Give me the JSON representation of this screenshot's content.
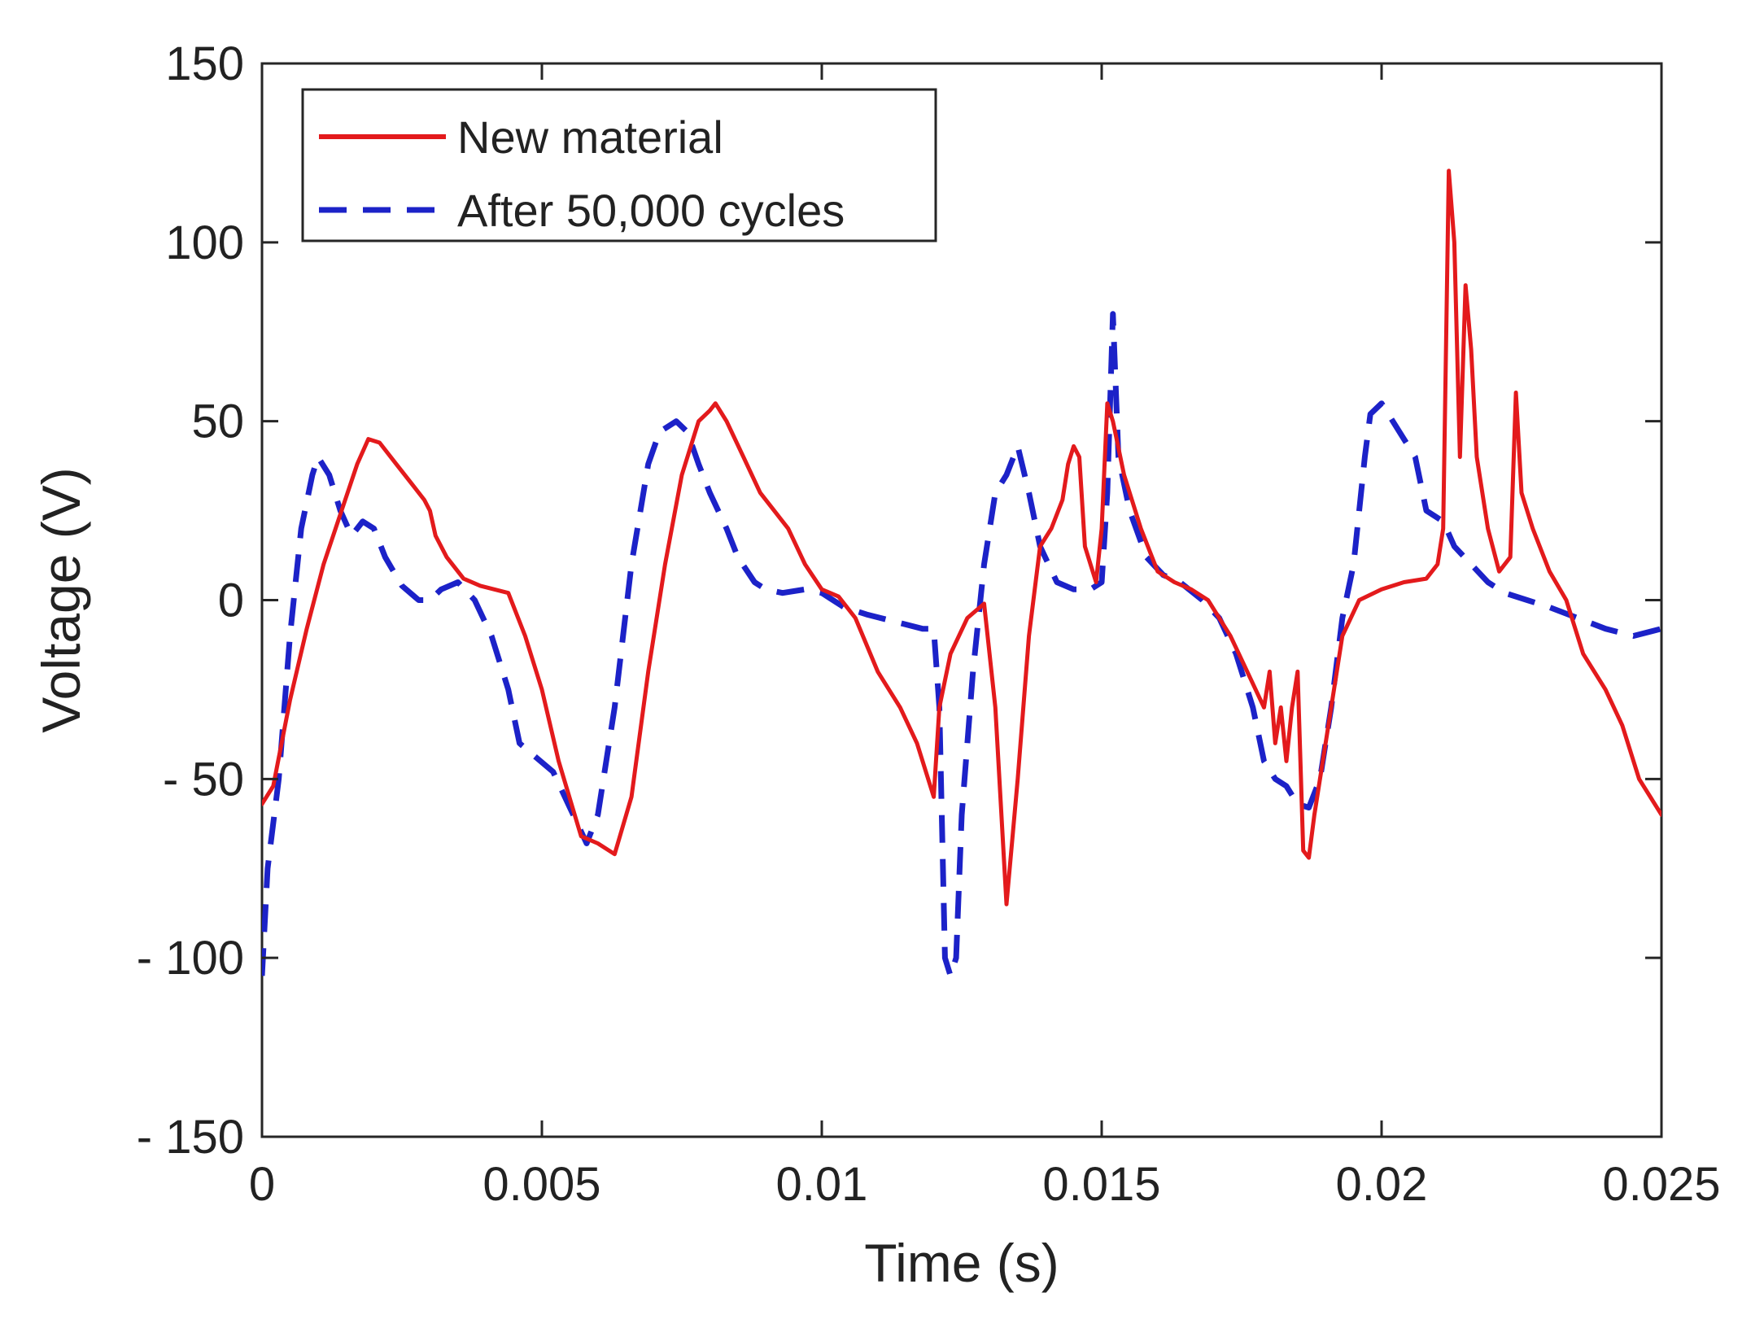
{
  "chart_data": {
    "type": "line",
    "title": "",
    "xlabel": "Time (s)",
    "ylabel": "Voltage (V)",
    "xlim": [
      0,
      0.025
    ],
    "ylim": [
      -150,
      150
    ],
    "x_ticks": [
      0,
      0.005,
      0.01,
      0.015,
      0.02,
      0.025
    ],
    "x_tick_labels": [
      "0",
      "0.005",
      "0.01",
      "0.015",
      "0.02",
      "0.025"
    ],
    "y_ticks": [
      -150,
      -100,
      -50,
      0,
      50,
      100,
      150
    ],
    "y_tick_labels": [
      "- 150",
      "- 100",
      "- 50",
      "0",
      "50",
      "100",
      "150"
    ],
    "grid": false,
    "legend_position": "top-left",
    "series": [
      {
        "name": "New material",
        "color": "#e31a1c",
        "style": "solid",
        "points": [
          [
            0,
            -57
          ],
          [
            0.0002,
            -52
          ],
          [
            0.0005,
            -28
          ],
          [
            0.0008,
            -8
          ],
          [
            0.0011,
            10
          ],
          [
            0.0014,
            24
          ],
          [
            0.0017,
            38
          ],
          [
            0.0019,
            45
          ],
          [
            0.0021,
            44
          ],
          [
            0.0024,
            38
          ],
          [
            0.0027,
            32
          ],
          [
            0.0029,
            28
          ],
          [
            0.003,
            25
          ],
          [
            0.0031,
            18
          ],
          [
            0.0033,
            12
          ],
          [
            0.0036,
            6
          ],
          [
            0.0039,
            4
          ],
          [
            0.0044,
            2
          ],
          [
            0.0047,
            -10
          ],
          [
            0.005,
            -25
          ],
          [
            0.0053,
            -45
          ],
          [
            0.0057,
            -66
          ],
          [
            0.006,
            -68
          ],
          [
            0.0063,
            -71
          ],
          [
            0.0066,
            -55
          ],
          [
            0.0069,
            -20
          ],
          [
            0.0072,
            10
          ],
          [
            0.0075,
            35
          ],
          [
            0.0078,
            50
          ],
          [
            0.008,
            53
          ],
          [
            0.0081,
            55
          ],
          [
            0.0083,
            50
          ],
          [
            0.0086,
            40
          ],
          [
            0.0089,
            30
          ],
          [
            0.0091,
            26
          ],
          [
            0.0094,
            20
          ],
          [
            0.0097,
            10
          ],
          [
            0.01,
            3
          ],
          [
            0.0103,
            1
          ],
          [
            0.0106,
            -5
          ],
          [
            0.011,
            -20
          ],
          [
            0.0114,
            -30
          ],
          [
            0.0117,
            -40
          ],
          [
            0.012,
            -55
          ],
          [
            0.0121,
            -30
          ],
          [
            0.0123,
            -15
          ],
          [
            0.0126,
            -5
          ],
          [
            0.0129,
            -1
          ],
          [
            0.0131,
            -30
          ],
          [
            0.0133,
            -85
          ],
          [
            0.0135,
            -50
          ],
          [
            0.0137,
            -10
          ],
          [
            0.0139,
            15
          ],
          [
            0.0141,
            20
          ],
          [
            0.0143,
            28
          ],
          [
            0.0144,
            38
          ],
          [
            0.0145,
            43
          ],
          [
            0.0146,
            40
          ],
          [
            0.0147,
            15
          ],
          [
            0.0149,
            5
          ],
          [
            0.015,
            20
          ],
          [
            0.0151,
            55
          ],
          [
            0.0152,
            50
          ],
          [
            0.0154,
            35
          ],
          [
            0.0157,
            20
          ],
          [
            0.016,
            8
          ],
          [
            0.0163,
            5
          ],
          [
            0.0166,
            3
          ],
          [
            0.0169,
            0
          ],
          [
            0.0173,
            -10
          ],
          [
            0.0176,
            -20
          ],
          [
            0.0179,
            -30
          ],
          [
            0.018,
            -20
          ],
          [
            0.0181,
            -40
          ],
          [
            0.0182,
            -30
          ],
          [
            0.0183,
            -45
          ],
          [
            0.0184,
            -30
          ],
          [
            0.0185,
            -20
          ],
          [
            0.0186,
            -70
          ],
          [
            0.0187,
            -72
          ],
          [
            0.0188,
            -60
          ],
          [
            0.019,
            -40
          ],
          [
            0.0193,
            -10
          ],
          [
            0.0196,
            0
          ],
          [
            0.02,
            3
          ],
          [
            0.0204,
            5
          ],
          [
            0.0208,
            6
          ],
          [
            0.021,
            10
          ],
          [
            0.0211,
            20
          ],
          [
            0.0212,
            120
          ],
          [
            0.0213,
            100
          ],
          [
            0.0214,
            40
          ],
          [
            0.0215,
            88
          ],
          [
            0.0216,
            70
          ],
          [
            0.0217,
            40
          ],
          [
            0.0219,
            20
          ],
          [
            0.0221,
            8
          ],
          [
            0.0223,
            12
          ],
          [
            0.0224,
            58
          ],
          [
            0.0225,
            30
          ],
          [
            0.0227,
            20
          ],
          [
            0.023,
            8
          ],
          [
            0.0233,
            0
          ],
          [
            0.0236,
            -15
          ],
          [
            0.024,
            -25
          ],
          [
            0.0243,
            -35
          ],
          [
            0.0246,
            -50
          ],
          [
            0.025,
            -60
          ]
        ]
      },
      {
        "name": "After 50,000 cycles",
        "color": "#1c22c8",
        "style": "dashed",
        "points": [
          [
            0,
            -105
          ],
          [
            0.0001,
            -75
          ],
          [
            0.0003,
            -50
          ],
          [
            0.0005,
            -10
          ],
          [
            0.0007,
            20
          ],
          [
            0.0009,
            35
          ],
          [
            0.001,
            40
          ],
          [
            0.0012,
            35
          ],
          [
            0.0014,
            25
          ],
          [
            0.0016,
            18
          ],
          [
            0.0018,
            22
          ],
          [
            0.002,
            20
          ],
          [
            0.0022,
            12
          ],
          [
            0.0025,
            4
          ],
          [
            0.0028,
            0
          ],
          [
            0.003,
            0
          ],
          [
            0.0032,
            3
          ],
          [
            0.0035,
            5
          ],
          [
            0.0038,
            0
          ],
          [
            0.0041,
            -10
          ],
          [
            0.0044,
            -25
          ],
          [
            0.0046,
            -40
          ],
          [
            0.0049,
            -44
          ],
          [
            0.0052,
            -48
          ],
          [
            0.0055,
            -58
          ],
          [
            0.0058,
            -68
          ],
          [
            0.006,
            -60
          ],
          [
            0.0063,
            -30
          ],
          [
            0.0066,
            10
          ],
          [
            0.0069,
            38
          ],
          [
            0.0071,
            47
          ],
          [
            0.0074,
            50
          ],
          [
            0.0076,
            47
          ],
          [
            0.0078,
            38
          ],
          [
            0.008,
            30
          ],
          [
            0.0083,
            20
          ],
          [
            0.0085,
            12
          ],
          [
            0.0088,
            5
          ],
          [
            0.009,
            3
          ],
          [
            0.0093,
            2
          ],
          [
            0.0097,
            3
          ],
          [
            0.01,
            2
          ],
          [
            0.0104,
            -2
          ],
          [
            0.0108,
            -4
          ],
          [
            0.0113,
            -6
          ],
          [
            0.0118,
            -8
          ],
          [
            0.012,
            -8
          ],
          [
            0.0121,
            -30
          ],
          [
            0.0122,
            -100
          ],
          [
            0.0123,
            -105
          ],
          [
            0.0124,
            -100
          ],
          [
            0.0125,
            -60
          ],
          [
            0.0127,
            -20
          ],
          [
            0.0129,
            10
          ],
          [
            0.0131,
            30
          ],
          [
            0.0133,
            35
          ],
          [
            0.0135,
            43
          ],
          [
            0.0137,
            30
          ],
          [
            0.0139,
            15
          ],
          [
            0.0142,
            5
          ],
          [
            0.0145,
            3
          ],
          [
            0.0148,
            3
          ],
          [
            0.015,
            5
          ],
          [
            0.0151,
            30
          ],
          [
            0.0152,
            80
          ],
          [
            0.0153,
            40
          ],
          [
            0.0155,
            25
          ],
          [
            0.0158,
            12
          ],
          [
            0.0161,
            7
          ],
          [
            0.0164,
            5
          ],
          [
            0.0168,
            0
          ],
          [
            0.0171,
            -5
          ],
          [
            0.0174,
            -15
          ],
          [
            0.0177,
            -30
          ],
          [
            0.0179,
            -45
          ],
          [
            0.0181,
            -50
          ],
          [
            0.0183,
            -52
          ],
          [
            0.0185,
            -57
          ],
          [
            0.0187,
            -58
          ],
          [
            0.0189,
            -50
          ],
          [
            0.0191,
            -30
          ],
          [
            0.0193,
            -5
          ],
          [
            0.0195,
            10
          ],
          [
            0.0197,
            40
          ],
          [
            0.0198,
            52
          ],
          [
            0.02,
            55
          ],
          [
            0.0202,
            50
          ],
          [
            0.0204,
            45
          ],
          [
            0.0206,
            40
          ],
          [
            0.0208,
            25
          ],
          [
            0.0211,
            22
          ],
          [
            0.0213,
            15
          ],
          [
            0.0216,
            10
          ],
          [
            0.0219,
            5
          ],
          [
            0.0222,
            2
          ],
          [
            0.0226,
            0
          ],
          [
            0.023,
            -2
          ],
          [
            0.0235,
            -5
          ],
          [
            0.024,
            -8
          ],
          [
            0.0245,
            -10
          ],
          [
            0.025,
            -8
          ]
        ]
      }
    ]
  }
}
